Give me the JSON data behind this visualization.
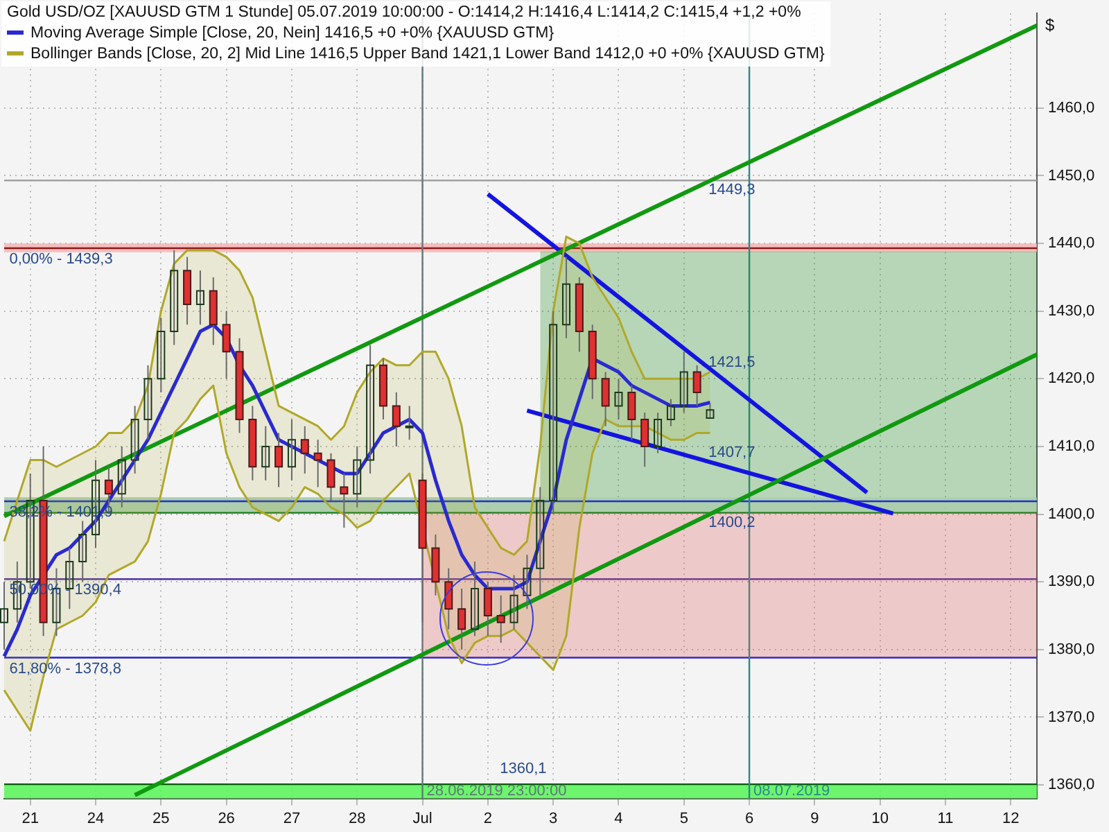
{
  "chart_data": {
    "type": "candlestick",
    "title": "Gold USD/OZ [XAUUSD GTM  1 Stunde] 05.07.2019 10:00:00 - O:1414,2 H:1416,4 L:1414,2 C:1415,4 +1,2 +0%",
    "ylabel": "$",
    "categories": [
      null,
      null,
      "21",
      null,
      null,
      null,
      null,
      "24",
      null,
      null,
      null,
      null,
      "25",
      null,
      null,
      null,
      null,
      "26",
      null,
      null,
      null,
      null,
      "27",
      null,
      null,
      null,
      null,
      "28",
      null,
      null,
      null,
      null,
      "Jul",
      null,
      null,
      null,
      null,
      "2",
      null,
      null,
      null,
      null,
      "3",
      null,
      null,
      null,
      null,
      "4",
      null,
      null,
      null,
      null,
      "5",
      null,
      null,
      null,
      null,
      "6",
      null,
      null,
      null,
      null,
      "9",
      null,
      null,
      null,
      null,
      "10",
      null,
      null,
      null,
      null,
      "11",
      null,
      null,
      null,
      null,
      "12",
      null,
      null
    ],
    "ohlc": [
      [
        1384,
        1390,
        1380,
        1386
      ],
      [
        1386,
        1393,
        1384,
        1390
      ],
      [
        1390,
        1406,
        1389,
        1402
      ],
      [
        1402,
        1410,
        1382,
        1384
      ],
      [
        1384,
        1392,
        1382,
        1389
      ],
      [
        1389,
        1395,
        1386,
        1393
      ],
      [
        1393,
        1399,
        1390,
        1397
      ],
      [
        1397,
        1408,
        1395,
        1405
      ],
      [
        1405,
        1407,
        1400,
        1403
      ],
      [
        1403,
        1410,
        1401,
        1408
      ],
      [
        1408,
        1416,
        1406,
        1414
      ],
      [
        1414,
        1422,
        1411,
        1420
      ],
      [
        1420,
        1429,
        1418,
        1427
      ],
      [
        1427,
        1439,
        1425,
        1436
      ],
      [
        1436,
        1438,
        1428,
        1431
      ],
      [
        1431,
        1436,
        1428,
        1433
      ],
      [
        1433,
        1435,
        1425,
        1428
      ],
      [
        1428,
        1430,
        1420,
        1424
      ],
      [
        1424,
        1426,
        1412,
        1414
      ],
      [
        1414,
        1416,
        1405,
        1407
      ],
      [
        1407,
        1413,
        1405,
        1410
      ],
      [
        1410,
        1412,
        1404,
        1407
      ],
      [
        1407,
        1414,
        1405,
        1411
      ],
      [
        1411,
        1413,
        1406,
        1409
      ],
      [
        1409,
        1411,
        1404,
        1408
      ],
      [
        1408,
        1409,
        1402,
        1404
      ],
      [
        1404,
        1406,
        1398,
        1403
      ],
      [
        1403,
        1410,
        1401,
        1408
      ],
      [
        1408,
        1425,
        1406,
        1422
      ],
      [
        1422,
        1423,
        1414,
        1416
      ],
      [
        1416,
        1418,
        1410,
        1413
      ],
      [
        1413,
        1416,
        1411,
        1413
      ],
      [
        1405,
        1406,
        1384,
        1395
      ],
      [
        1395,
        1397,
        1388,
        1390
      ],
      [
        1390,
        1392,
        1383,
        1386
      ],
      [
        1386,
        1389,
        1380,
        1383
      ],
      [
        1383,
        1393,
        1382,
        1389
      ],
      [
        1389,
        1390,
        1382,
        1385
      ],
      [
        1385,
        1388,
        1381,
        1384
      ],
      [
        1384,
        1391,
        1383,
        1388
      ],
      [
        1388,
        1394,
        1386,
        1392
      ],
      [
        1392,
        1404,
        1388,
        1402
      ],
      [
        1402,
        1430,
        1400,
        1428
      ],
      [
        1428,
        1438,
        1426,
        1434
      ],
      [
        1434,
        1435,
        1424,
        1427
      ],
      [
        1427,
        1428,
        1417,
        1420
      ],
      [
        1420,
        1421,
        1413,
        1416
      ],
      [
        1416,
        1420,
        1414,
        1418
      ],
      [
        1418,
        1419,
        1411,
        1414
      ],
      [
        1414,
        1415,
        1407,
        1410
      ],
      [
        1410,
        1415,
        1409,
        1414
      ],
      [
        1414,
        1417,
        1413,
        1416
      ],
      [
        1416,
        1424,
        1415,
        1421
      ],
      [
        1421,
        1422,
        1416,
        1418
      ],
      [
        1414.2,
        1416.4,
        1414.2,
        1415.4
      ],
      null,
      null,
      null,
      null,
      null,
      null,
      null,
      null,
      null,
      null,
      null,
      null,
      null,
      null,
      null,
      null,
      null,
      null,
      null,
      null,
      null,
      null,
      null,
      null,
      null
    ],
    "series": [
      {
        "type": "area",
        "color": "#1a8a1a",
        "values": [
          null,
          null,
          null,
          null,
          null,
          null,
          null,
          null,
          null,
          null,
          null,
          null,
          null,
          null,
          null,
          null,
          null,
          null,
          null,
          null,
          null,
          null,
          null,
          null,
          null,
          null,
          null,
          null,
          null,
          null,
          null,
          null,
          null,
          null,
          null,
          null,
          null,
          null,
          null,
          null,
          null,
          null,
          null,
          null,
          null,
          null,
          null,
          null,
          null,
          null,
          null,
          null,
          null,
          null,
          null,
          null,
          null,
          null,
          null,
          null,
          null,
          null,
          null,
          null,
          null,
          null,
          null,
          null,
          null,
          null,
          null,
          null,
          null,
          null,
          null,
          null,
          null,
          null,
          null,
          null
        ],
        "lower": [
          null,
          null,
          null,
          null,
          null,
          null,
          null,
          null,
          null,
          null,
          null,
          null,
          null,
          null,
          null,
          null,
          null,
          null,
          null,
          null,
          null,
          null,
          null,
          null,
          null,
          null,
          null,
          null,
          null,
          null,
          null,
          null,
          null,
          null,
          null,
          null,
          null,
          null,
          null,
          null,
          null,
          1402.5,
          1402.5,
          1402.5,
          1402.5,
          1402.5,
          1402.5,
          1402.5,
          1402.5,
          1402.5,
          1402.5,
          1402.5,
          1402.5,
          1402.5,
          1402.5,
          1402.5,
          1402.5,
          1402.5,
          1402.5,
          1402.5,
          1402.5,
          1402.5,
          1402.5,
          1402.5,
          1402.5,
          1402.5,
          1402.5,
          1402.5,
          1402.5,
          1402.5,
          1402.5,
          1402.5,
          1402.5,
          1402.5,
          1402.5,
          1402.5,
          1402.5,
          1402.5,
          1402.5,
          1402.5
        ],
        "upper": [
          null,
          null,
          null,
          null,
          null,
          null,
          null,
          null,
          null,
          null,
          null,
          null,
          null,
          null,
          null,
          null,
          null,
          null,
          null,
          null,
          null,
          null,
          null,
          null,
          null,
          null,
          null,
          null,
          null,
          null,
          null,
          null,
          null,
          null,
          null,
          null,
          null,
          null,
          null,
          null,
          null,
          1438.8,
          1438.8,
          1438.8,
          1438.8,
          1438.8,
          1438.8,
          1438.8,
          1438.8,
          1438.8,
          1438.8,
          1438.8,
          1438.8,
          1438.8,
          1438.8,
          1438.8,
          1438.8,
          1438.8,
          1438.8,
          1438.8,
          1438.8,
          1438.8,
          1438.8,
          1438.8,
          1438.8,
          1438.8,
          1438.8,
          1438.8,
          1438.8,
          1438.8,
          1438.8,
          1438.8,
          1438.8,
          1438.8,
          1438.8,
          1438.8,
          1438.8,
          1438.8,
          1438.8,
          1438.8
        ]
      },
      {
        "type": "area",
        "color": "#e05a5a",
        "values": [
          null,
          null,
          null,
          null,
          null,
          null,
          null,
          null,
          null,
          null,
          null,
          null,
          null,
          null,
          null,
          null,
          null,
          null,
          null,
          null,
          null,
          null,
          null,
          null,
          null,
          null,
          null,
          null,
          null,
          null,
          null,
          null,
          null,
          null,
          null,
          null,
          null,
          null,
          null,
          null,
          null,
          null,
          null,
          null,
          null,
          null,
          null,
          null,
          null,
          null,
          null,
          null,
          null,
          null,
          null,
          null,
          null,
          null,
          null,
          null,
          null,
          null,
          null,
          null,
          null,
          null,
          null,
          null,
          null,
          null,
          null,
          null,
          null,
          null,
          null,
          null,
          null,
          null,
          null,
          null
        ],
        "lower": [
          null,
          null,
          null,
          null,
          null,
          null,
          null,
          null,
          null,
          null,
          null,
          null,
          null,
          null,
          null,
          null,
          null,
          null,
          null,
          null,
          null,
          null,
          null,
          null,
          null,
          null,
          null,
          null,
          null,
          null,
          null,
          null,
          1378.8,
          1378.8,
          1378.8,
          1378.8,
          1378.8,
          1378.8,
          1378.8,
          1378.8,
          1378.8,
          1378.8,
          1378.8,
          1378.8,
          1378.8,
          1378.8,
          1378.8,
          1378.8,
          1378.8,
          1378.8,
          1378.8,
          1378.8,
          1378.8,
          1378.8,
          1378.8,
          1378.8,
          1378.8,
          1378.8,
          1378.8,
          1378.8,
          1378.8,
          1378.8,
          1378.8,
          1378.8,
          1378.8,
          1378.8,
          1378.8,
          1378.8,
          1378.8,
          1378.8,
          1378.8,
          1378.8,
          1378.8,
          1378.8,
          1378.8,
          1378.8,
          1378.8,
          1378.8,
          1378.8,
          1378.8
        ],
        "upper": [
          null,
          null,
          null,
          null,
          null,
          null,
          null,
          null,
          null,
          null,
          null,
          null,
          null,
          null,
          null,
          null,
          null,
          null,
          null,
          null,
          null,
          null,
          null,
          null,
          null,
          null,
          null,
          null,
          null,
          null,
          null,
          null,
          1400.2,
          1400.2,
          1400.2,
          1400.2,
          1400.2,
          1400.2,
          1400.2,
          1400.2,
          1400.2,
          1400.2,
          1400.2,
          1400.2,
          1400.2,
          1400.2,
          1400.2,
          1400.2,
          1400.2,
          1400.2,
          1400.2,
          1400.2,
          1400.2,
          1400.2,
          1400.2,
          1400.2,
          1400.2,
          1400.2,
          1400.2,
          1400.2,
          1400.2,
          1400.2,
          1400.2,
          1400.2,
          1400.2,
          1400.2,
          1400.2,
          1400.2,
          1400.2,
          1400.2,
          1400.2,
          1400.2,
          1400.2,
          1400.2,
          1400.2,
          1400.2,
          1400.2,
          1400.2,
          1400.2,
          1400.2
        ]
      },
      {
        "type": "line",
        "name": "Moving Average Simple [Close, 20, Nein] 1416,5 +0 +0% {XAUUSD GTM}",
        "color": "#2a2ad0",
        "values": [
          1379,
          1383,
          1388,
          1391,
          1394,
          1395,
          1397,
          1399,
          1402,
          1405,
          1408,
          1411,
          1415,
          1419,
          1423,
          1427,
          1428,
          1426,
          1422,
          1419,
          1415,
          1411,
          1410,
          1409,
          1408,
          1407,
          1406,
          1406,
          1409,
          1412,
          1413,
          1414,
          1412,
          1405,
          1399,
          1394,
          1391,
          1389,
          1389,
          1389,
          1390,
          1396,
          1402,
          1411,
          1417,
          1423,
          1422,
          1421,
          1419,
          1418,
          1417,
          1416,
          1416,
          1416,
          1416.5,
          null,
          null,
          null,
          null,
          null,
          null,
          null,
          null,
          null,
          null,
          null,
          null,
          null,
          null,
          null,
          null,
          null,
          null,
          null,
          null,
          null,
          null,
          null,
          null,
          null
        ]
      },
      {
        "type": "line",
        "name": "Bollinger Bands [Close, 20, 2] Mid Line 1416,5 Upper Band 1421,1 Lower Band 1412,0 +0 +0% {XAUUSD GTM}",
        "color": "#b0a828",
        "values": [
          1396,
          1402,
          1408,
          1408,
          1407,
          1408,
          1409,
          1410,
          1412,
          1412,
          1414,
          1419,
          1430,
          1437,
          1439,
          1439,
          1439,
          1438,
          1436,
          1432,
          1424,
          1416,
          1415,
          1414,
          1413,
          1411,
          1413,
          1418,
          1421,
          1423,
          1422,
          1422,
          1424,
          1424,
          1420,
          1413,
          1401,
          1398,
          1395,
          1394,
          1396,
          1410,
          1430,
          1441,
          1440,
          1435,
          1432,
          1429,
          1424,
          1420,
          1420,
          1420,
          1420,
          1420,
          1421,
          null,
          null,
          null,
          null,
          null,
          null,
          null,
          null,
          null,
          null,
          null,
          null,
          null,
          null,
          null,
          null,
          null,
          null,
          null,
          null,
          null,
          null,
          null,
          null,
          null
        ],
        "upper": [
          1396,
          1402,
          1408,
          1408,
          1407,
          1408,
          1409,
          1410,
          1412,
          1412,
          1414,
          1419,
          1430,
          1437,
          1439,
          1439,
          1439,
          1438,
          1436,
          1432,
          1424,
          1416,
          1415,
          1414,
          1413,
          1411,
          1413,
          1418,
          1421,
          1423,
          1422,
          1422,
          1424,
          1424,
          1420,
          1413,
          1401,
          1398,
          1395,
          1394,
          1396,
          1410,
          1430,
          1441,
          1440,
          1435,
          1432,
          1429,
          1424,
          1420,
          1420,
          1420,
          1420,
          1420,
          1421,
          null,
          null,
          null,
          null,
          null,
          null,
          null,
          null,
          null,
          null,
          null,
          null,
          null,
          null,
          null,
          null,
          null,
          null,
          null,
          null,
          null,
          null,
          null,
          null,
          null
        ],
        "lower": [
          1374,
          1371,
          1368,
          1376,
          1383,
          1384,
          1385,
          1387,
          1391,
          1392,
          1393,
          1396,
          1403,
          1412,
          1414,
          1417,
          1419,
          1409,
          1404,
          1401,
          1400,
          1399,
          1401,
          1404,
          1403,
          1401,
          1400,
          1398,
          1399,
          1402,
          1404,
          1406,
          1403,
          1390,
          1382,
          1378,
          1381,
          1382,
          1382,
          1383,
          1381,
          1379,
          1377,
          1382,
          1398,
          1409,
          1414,
          1413,
          1413,
          1413,
          1412,
          1411,
          1411,
          1412,
          1412,
          null,
          null,
          null,
          null,
          null,
          null,
          null,
          null,
          null,
          null,
          null,
          null,
          null,
          null,
          null,
          null,
          null,
          null,
          null,
          null,
          null,
          null,
          null,
          null,
          null
        ]
      },
      {
        "type": "line",
        "color": "#b0a828",
        "values": [
          1374,
          1371,
          1368,
          1376,
          1383,
          1384,
          1385,
          1387,
          1391,
          1392,
          1393,
          1396,
          1403,
          1412,
          1414,
          1417,
          1419,
          1409,
          1404,
          1401,
          1400,
          1399,
          1401,
          1404,
          1403,
          1401,
          1400,
          1398,
          1399,
          1402,
          1404,
          1406,
          null,
          1390,
          1382,
          1378,
          1381,
          1382,
          1382,
          1383,
          1381,
          1379,
          1377,
          1382,
          1398,
          1409,
          1414,
          1413,
          1413,
          1413,
          1412,
          1411,
          1411,
          1412,
          1412,
          null,
          null,
          null,
          null,
          null,
          null,
          null,
          null,
          null,
          null,
          null,
          null,
          null,
          null,
          null,
          null,
          null,
          null,
          null,
          null,
          null,
          null,
          null,
          null,
          null
        ]
      },
      {
        "type": "line",
        "color": "#119911",
        "values": [
          1399.7,
          null,
          null,
          null,
          null,
          null,
          null,
          null,
          null,
          null,
          null,
          null,
          null,
          null,
          null,
          null,
          null,
          null,
          null,
          null,
          null,
          null,
          null,
          null,
          null,
          null,
          null,
          null,
          null,
          null,
          null,
          null,
          null,
          null,
          null,
          null,
          null,
          null,
          null,
          null,
          null,
          null,
          null,
          null,
          null,
          null,
          null,
          null,
          null,
          null,
          null,
          null,
          null,
          null,
          null,
          null,
          null,
          null,
          null,
          null,
          null,
          null,
          null,
          null,
          null,
          null,
          null,
          null,
          null,
          null,
          null,
          null,
          null,
          null,
          null,
          null,
          null,
          null,
          null,
          1472.2
        ]
      },
      {
        "type": "line",
        "color": "#119911",
        "values": [
          null,
          null,
          null,
          null,
          null,
          null,
          null,
          null,
          null,
          null,
          1358.5,
          null,
          null,
          null,
          null,
          null,
          null,
          null,
          null,
          null,
          null,
          null,
          null,
          null,
          null,
          null,
          null,
          null,
          null,
          null,
          null,
          null,
          null,
          null,
          null,
          null,
          null,
          null,
          null,
          null,
          null,
          null,
          null,
          null,
          null,
          null,
          null,
          null,
          null,
          null,
          null,
          null,
          null,
          null,
          null,
          null,
          null,
          null,
          null,
          null,
          null,
          null,
          null,
          null,
          null,
          null,
          null,
          null,
          null,
          null,
          null,
          null,
          null,
          null,
          null,
          null,
          null,
          null,
          null,
          1423.6
        ]
      },
      {
        "type": "line",
        "color": "#1414e0",
        "values": [
          null,
          null,
          null,
          null,
          null,
          null,
          null,
          null,
          null,
          null,
          null,
          null,
          null,
          null,
          null,
          null,
          null,
          null,
          null,
          null,
          null,
          null,
          null,
          null,
          null,
          null,
          null,
          null,
          null,
          null,
          null,
          null,
          null,
          null,
          null,
          null,
          null,
          1447.3,
          null,
          null,
          null,
          null,
          null,
          null,
          null,
          null,
          null,
          null,
          null,
          null,
          null,
          null,
          null,
          null,
          null,
          null,
          null,
          null,
          null,
          null,
          null,
          null,
          null,
          null,
          null,
          null,
          1403.2,
          null,
          null,
          null,
          null,
          null,
          null,
          null,
          null,
          null,
          null,
          null,
          null,
          null
        ]
      },
      {
        "type": "line",
        "color": "#1414e0",
        "values": [
          null,
          null,
          null,
          null,
          null,
          null,
          null,
          null,
          null,
          null,
          null,
          null,
          null,
          null,
          null,
          null,
          null,
          null,
          null,
          null,
          null,
          null,
          null,
          null,
          null,
          null,
          null,
          null,
          null,
          null,
          null,
          null,
          null,
          null,
          null,
          null,
          null,
          null,
          null,
          null,
          1415.3,
          null,
          null,
          null,
          null,
          null,
          null,
          null,
          null,
          null,
          null,
          null,
          null,
          null,
          null,
          null,
          null,
          null,
          null,
          null,
          null,
          null,
          null,
          null,
          null,
          null,
          null,
          null,
          1400.1,
          null,
          null,
          null,
          null,
          null,
          null,
          null,
          null,
          null,
          null,
          null
        ]
      }
    ],
    "bands": [
      {
        "axis": "y",
        "from": 1358,
        "to": 1360.1,
        "color": "#55f555"
      },
      {
        "axis": "y",
        "from": 1400.2,
        "to": 1402.5,
        "color": "#9fc79f"
      },
      {
        "axis": "y",
        "from": 1438.7,
        "to": 1440,
        "color": "#f4b4b4"
      }
    ],
    "ref_lines": [
      {
        "axis": "y",
        "value": 1439.3,
        "color": "#8b1a1a"
      },
      {
        "axis": "y",
        "value": 1401.9,
        "color": "#2030d0"
      },
      {
        "axis": "y",
        "value": 1390.4,
        "color": "#5030a0"
      },
      {
        "axis": "y",
        "value": 1378.8,
        "color": "#2020d0"
      },
      {
        "axis": "y",
        "value": 1449.3,
        "color": "#a0a0a0"
      },
      {
        "axis": "y",
        "value": 1400.2,
        "color": "#1a7a1a"
      },
      {
        "axis": "y",
        "value": 1360.1,
        "color": "#0a5a0a"
      },
      {
        "axis": "x",
        "value": "Jul",
        "label": "28.06.2019 23:00:00",
        "color": "#607878"
      },
      {
        "axis": "x",
        "value": "6",
        "label": "08.07.2019",
        "color": "#2a8a8a"
      }
    ],
    "annotations": [
      {
        "text": "0,00% - 1439,3",
        "y": 1439.3
      },
      {
        "text": "38,2% - 1401,9",
        "y": 1401.9
      },
      {
        "text": "50,00% - 1390,4",
        "y": 1390.4
      },
      {
        "text": "61,80% - 1378,8",
        "y": 1378.8
      },
      {
        "text": "1449,3",
        "y": 1449.3
      },
      "1421,5",
      "1407,7",
      {
        "text": "1400,2",
        "y": 1400.2
      },
      {
        "text": "1360,1",
        "y": 1360.1
      }
    ],
    "ylim": [
      1358,
      1474
    ],
    "yticks": [
      {
        "value": 1360,
        "label": "1360,0"
      },
      {
        "value": 1370,
        "label": "1370,0"
      },
      {
        "value": 1380,
        "label": "1380,0"
      },
      {
        "value": 1390,
        "label": "1390,0"
      },
      {
        "value": 1400,
        "label": "1400,0"
      },
      {
        "value": 1410,
        "label": "1410,0"
      },
      {
        "value": 1420,
        "label": "1420,0"
      },
      {
        "value": 1430,
        "label": "1430,0"
      },
      {
        "value": 1440,
        "label": "1440,0"
      },
      {
        "value": 1450,
        "label": "1450,0"
      },
      {
        "value": 1460,
        "label": "1460,0"
      }
    ],
    "grid": true,
    "legend": "top left"
  }
}
